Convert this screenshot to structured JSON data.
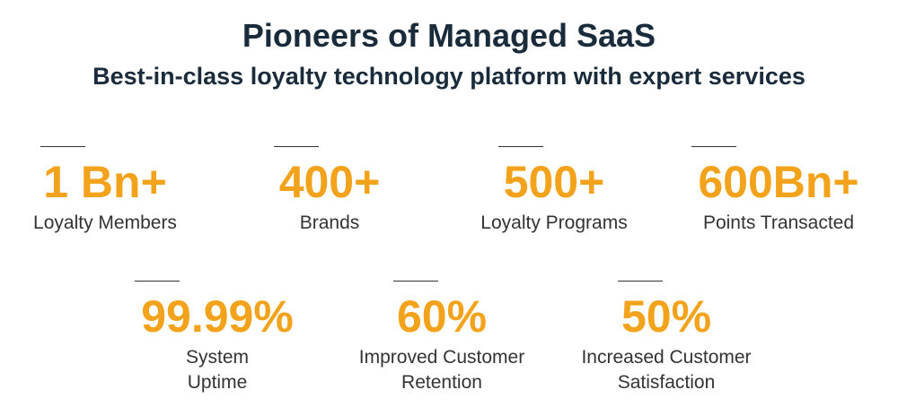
{
  "header": {
    "title": "Pioneers of Managed SaaS",
    "subtitle": "Best-in-class loyalty technology platform with expert services"
  },
  "colors": {
    "accent": "#f2a31b",
    "heading": "#1a2b3c",
    "text": "#333333"
  },
  "stats_row1": [
    {
      "value": "1 Bn+",
      "label": "Loyalty Members"
    },
    {
      "value": "400+",
      "label": "Brands"
    },
    {
      "value": "500+",
      "label": "Loyalty Programs"
    },
    {
      "value": "600Bn+",
      "label": "Points Transacted"
    }
  ],
  "stats_row2": [
    {
      "value": "99.99%",
      "label_line1": "System",
      "label_line2": "Uptime"
    },
    {
      "value": "60%",
      "label_line1": "Improved Customer",
      "label_line2": "Retention"
    },
    {
      "value": "50%",
      "label_line1": "Increased Customer",
      "label_line2": "Satisfaction"
    }
  ]
}
